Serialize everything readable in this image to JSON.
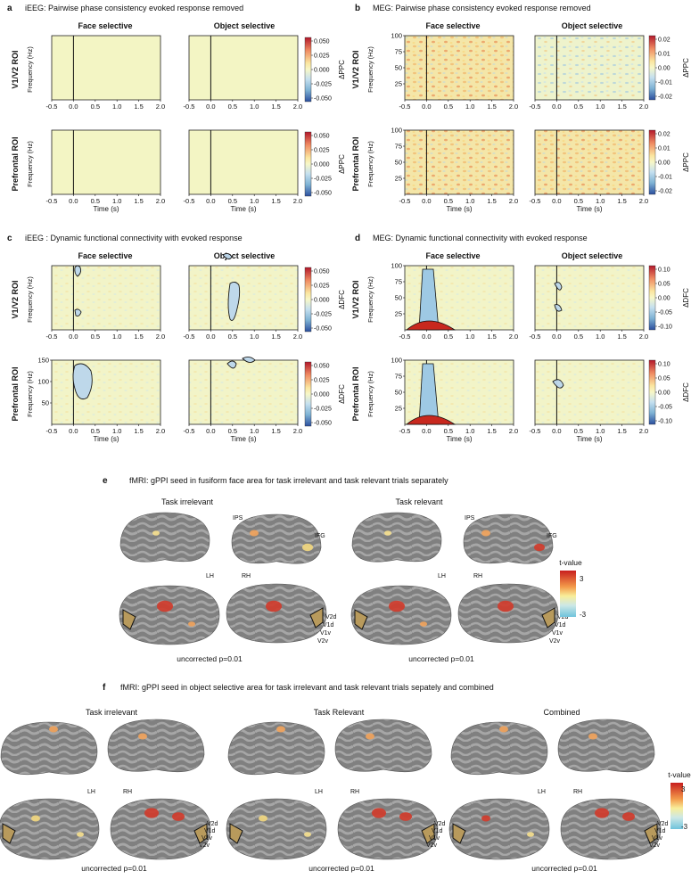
{
  "panels": {
    "a": {
      "letter": "a",
      "title": "iEEG: Pairwise phase consistency evoked response removed",
      "cols": [
        "Face selective",
        "Object selective"
      ],
      "rows": [
        "V1/V2 ROI",
        "Prefrontal ROI"
      ],
      "ylabel": "Frequency (Hz)",
      "xlabel": "Time (s)",
      "cbar_label": "ΔPPC",
      "cbar_ticks": [
        "0.050",
        "0.025",
        "0.000",
        "-0.025",
        "-0.050"
      ]
    },
    "b": {
      "letter": "b",
      "title": "MEG: Pairwise phase consistency evoked response removed",
      "cols": [
        "Face selective",
        "Object selective"
      ],
      "rows": [
        "V1/V2 ROI",
        "Prefrontal ROI"
      ],
      "ylabel": "Frequency (Hz)",
      "xlabel": "Time (s)",
      "cbar_label": "ΔPPC",
      "cbar_ticks": [
        "0.02",
        "0.01",
        "0.00",
        "-0.01",
        "-0.02"
      ]
    },
    "c": {
      "letter": "c",
      "title": "iEEG : Dynamic functional connectivity with evoked response",
      "cols": [
        "Face selective",
        "Object selective"
      ],
      "rows": [
        "V1/V2 ROI",
        "Prefrontal ROI"
      ],
      "ylabel": "Frequency (Hz)",
      "xlabel": "Time (s)",
      "cbar_label": "ΔDFC",
      "cbar_ticks": [
        "0.050",
        "0.025",
        "0.000",
        "-0.025",
        "-0.050"
      ]
    },
    "d": {
      "letter": "d",
      "title": "MEG: Dynamic functional connectivity with evoked response",
      "cols": [
        "Face selective",
        "Object selective"
      ],
      "rows": [
        "V1/V2 ROI",
        "Prefrontal ROI"
      ],
      "ylabel": "Frequency (Hz)",
      "xlabel": "Time (s)",
      "cbar_label": "ΔDFC",
      "cbar_ticks": [
        "0.10",
        "0.05",
        "0.00",
        "-0.05",
        "-0.10"
      ]
    },
    "e": {
      "letter": "e",
      "title": "fMRI: gPPI seed in fusiform face area for task irrelevant and task relevant trials separately",
      "groups": [
        "Task irrelevant",
        "Task relevant"
      ],
      "labels_ips": "IPS",
      "labels_ifg": "IFG",
      "lh": "LH",
      "rh": "RH",
      "v_labels": [
        "V2d",
        "V1d",
        "V1v",
        "V2v"
      ],
      "caption": "uncorrected p=0.01",
      "cbar_title": "t-value",
      "cbar_ticks": [
        "3",
        "-3"
      ]
    },
    "f": {
      "letter": "f",
      "title": "fMRI: gPPI seed in object selective area for task irrelevant and task relevant trials sepately and combined",
      "groups": [
        "Task irrelevant",
        "Task Relevant",
        "Combined"
      ],
      "lh": "LH",
      "rh": "RH",
      "v_labels": [
        "V2d",
        "V1d",
        "V1v",
        "V2v"
      ],
      "caption": "uncorrected p=0.01",
      "cbar_title": "t-value",
      "cbar_ticks": [
        "3",
        "-3"
      ]
    }
  },
  "axes": {
    "x_ticks": [
      "-0.5",
      "0.0",
      "0.5",
      "1.0",
      "1.5",
      "2.0"
    ],
    "y_ticks_100": [
      "100",
      "75",
      "50",
      "25"
    ],
    "y_ticks_150": [
      "150",
      "100",
      "50"
    ]
  },
  "colors": {
    "pale": "#f3f5c4",
    "red": "#c8281e",
    "blue": "#3d6bb0",
    "brain": "#7a7a7a",
    "sulcus": "#9b9b9b"
  }
}
